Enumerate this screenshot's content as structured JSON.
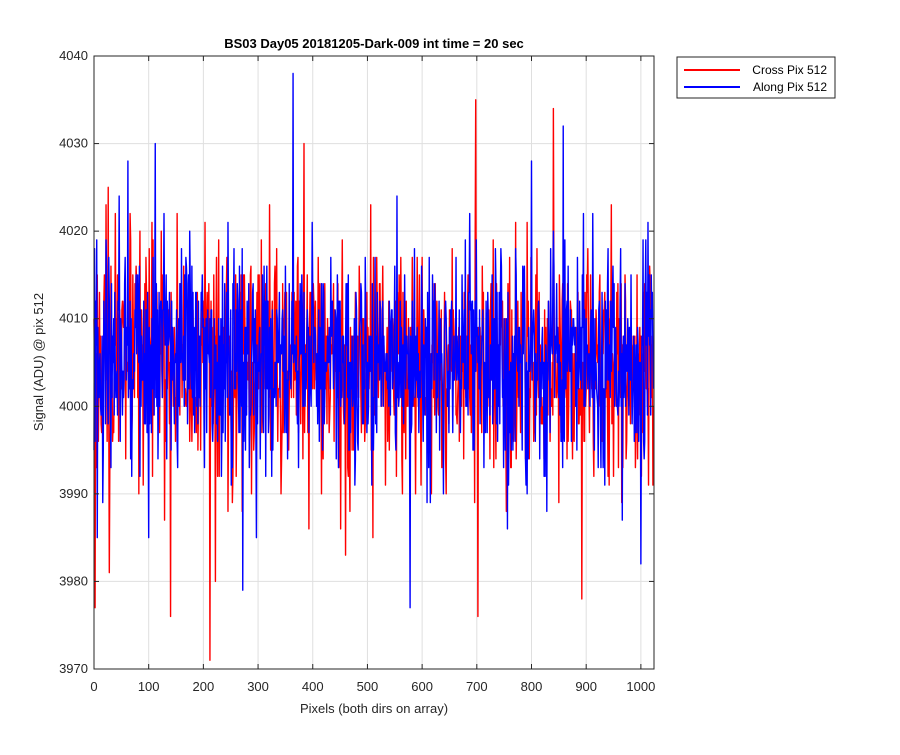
{
  "chart_data": {
    "type": "line",
    "title": "BS03 Day05 20181205-Dark-009 int time = 20 sec",
    "xlabel": "Pixels (both dirs on array)",
    "ylabel": "Signal (ADU) @ pix 512",
    "xlim": [
      0,
      1024
    ],
    "ylim": [
      3970,
      4040
    ],
    "xticks": [
      0,
      100,
      200,
      300,
      400,
      500,
      600,
      700,
      800,
      900,
      1000
    ],
    "yticks": [
      3970,
      3980,
      3990,
      4000,
      4010,
      4020,
      4030,
      4040
    ],
    "grid": true,
    "legend_position": "outside-top-right",
    "series": [
      {
        "name": "Cross Pix 512",
        "color": "#ff0000",
        "baseline": 4005,
        "noise_sigma": 6.5,
        "seed": 17,
        "samples": 1024,
        "spikes": [
          {
            "x": 2,
            "y": 3977
          },
          {
            "x": 22,
            "y": 4023
          },
          {
            "x": 26,
            "y": 4025
          },
          {
            "x": 28,
            "y": 3981
          },
          {
            "x": 140,
            "y": 3976
          },
          {
            "x": 212,
            "y": 3971
          },
          {
            "x": 222,
            "y": 3980
          },
          {
            "x": 384,
            "y": 4030
          },
          {
            "x": 460,
            "y": 3983
          },
          {
            "x": 698,
            "y": 4035
          },
          {
            "x": 702,
            "y": 3976
          },
          {
            "x": 840,
            "y": 4034
          },
          {
            "x": 892,
            "y": 3978
          }
        ]
      },
      {
        "name": "Along Pix 512",
        "color": "#0000ff",
        "baseline": 4005,
        "noise_sigma": 6.5,
        "seed": 91,
        "samples": 1024,
        "spikes": [
          {
            "x": 6,
            "y": 3985
          },
          {
            "x": 62,
            "y": 4028
          },
          {
            "x": 112,
            "y": 4030
          },
          {
            "x": 272,
            "y": 3979
          },
          {
            "x": 364,
            "y": 4038
          },
          {
            "x": 578,
            "y": 3977
          },
          {
            "x": 800,
            "y": 4028
          },
          {
            "x": 858,
            "y": 4032
          },
          {
            "x": 1000,
            "y": 3982
          }
        ]
      }
    ]
  }
}
